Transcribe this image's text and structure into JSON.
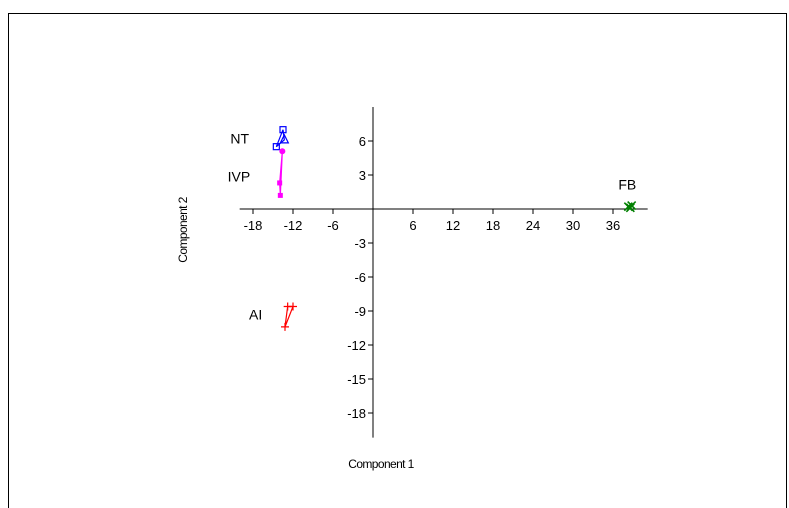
{
  "chart_data": {
    "type": "scatter",
    "title": "",
    "xlabel": "Component 1",
    "ylabel": "Component 2",
    "xlim": [
      -20,
      40
    ],
    "ylim": [
      -20,
      9
    ],
    "x_ticks": [
      -18,
      -12,
      -6,
      6,
      12,
      18,
      24,
      30,
      36
    ],
    "y_ticks": [
      6,
      3,
      -3,
      -6,
      -9,
      -12,
      -15,
      -18
    ],
    "grid": false,
    "legend": "none",
    "series": [
      {
        "label": "NT",
        "color": "#0000ff",
        "marker": "square-triangle",
        "points": [
          [
            -13.5,
            7.0
          ],
          [
            -14.5,
            5.5
          ],
          [
            -13.3,
            6.1
          ]
        ]
      },
      {
        "label": "IVP",
        "color": "#ff00ff",
        "marker": "filled-circle-square",
        "points": [
          [
            -13.6,
            5.1
          ],
          [
            -14.0,
            2.3
          ],
          [
            -13.9,
            1.2
          ]
        ]
      },
      {
        "label": "AI",
        "color": "#ff0000",
        "marker": "plus",
        "points": [
          [
            -12.8,
            -8.6
          ],
          [
            -12.0,
            -8.6
          ],
          [
            -13.2,
            -10.4
          ]
        ]
      },
      {
        "label": "FB",
        "color": "#008000",
        "marker": "x",
        "points": [
          [
            38.3,
            0.2
          ],
          [
            38.8,
            0.3
          ],
          [
            38.6,
            0.1
          ]
        ]
      }
    ]
  }
}
